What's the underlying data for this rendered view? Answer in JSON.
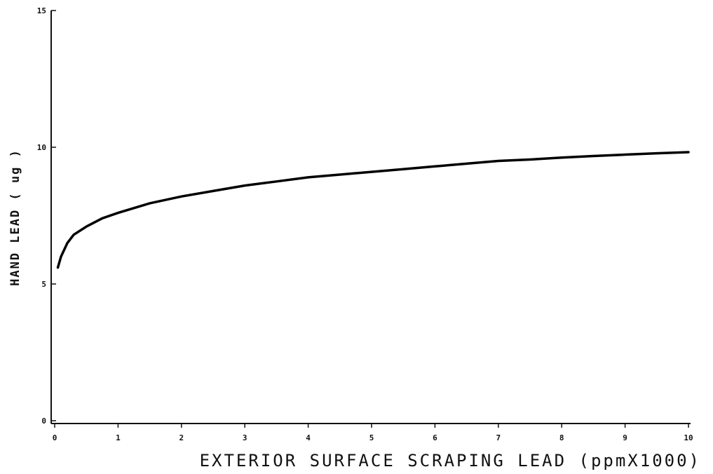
{
  "chart_data": {
    "type": "line",
    "title": "",
    "xlabel": "EXTERIOR SURFACE SCRAPING LEAD (ppmX1000)",
    "ylabel": "HAND LEAD ( ug )",
    "xlim": [
      0,
      10
    ],
    "ylim": [
      0,
      15
    ],
    "x_ticks": [
      "0",
      "1",
      "2",
      "3",
      "4",
      "5",
      "6",
      "7",
      "8",
      "9",
      "10"
    ],
    "y_ticks": [
      "0",
      "5",
      "10",
      "15"
    ],
    "grid": false,
    "legend": "none",
    "series": [
      {
        "x": [
          0.05,
          0.1,
          0.2,
          0.3,
          0.5,
          0.75,
          1,
          1.5,
          2,
          2.5,
          3,
          3.5,
          4,
          4.5,
          5,
          5.5,
          6,
          6.5,
          7,
          7.5,
          8,
          8.5,
          9,
          9.5,
          10
        ],
        "y": [
          5.6,
          6.0,
          6.5,
          6.8,
          7.1,
          7.4,
          7.6,
          7.95,
          8.2,
          8.4,
          8.6,
          8.75,
          8.9,
          9.0,
          9.1,
          9.2,
          9.3,
          9.4,
          9.5,
          9.55,
          9.62,
          9.68,
          9.73,
          9.78,
          9.82
        ]
      }
    ]
  }
}
